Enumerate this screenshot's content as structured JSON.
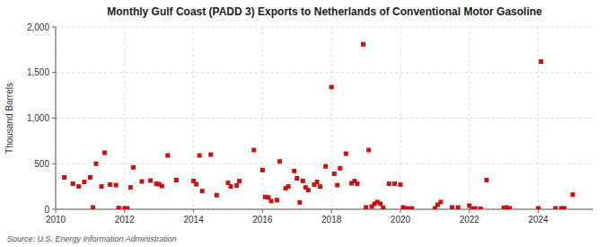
{
  "chart_data": {
    "type": "scatter",
    "title": "Monthly Gulf Coast (PADD 3) Exports to Netherlands of Conventional Motor Gasoline",
    "ylabel": "Thousand Barrels",
    "source": "Source: U.S. Energy Information Administration",
    "color": "#cc1111",
    "marker": "square",
    "grid": true,
    "xlim": [
      2010.0,
      2025.6
    ],
    "xticks": [
      2010,
      2012,
      2014,
      2016,
      2018,
      2020,
      2022,
      2024
    ],
    "ylim": [
      0,
      2000
    ],
    "yticks": [
      0,
      500,
      {
        "value": 1000,
        "label": "1,000"
      },
      {
        "value": 1500,
        "label": "1,500"
      },
      {
        "value": 2000,
        "label": "2,000"
      }
    ],
    "x": [
      2010.25,
      2010.5,
      2010.67,
      2010.83,
      2011.0,
      2011.08,
      2011.17,
      2011.33,
      2011.42,
      2011.58,
      2011.75,
      2011.83,
      2012.0,
      2012.08,
      2012.17,
      2012.25,
      2012.5,
      2012.75,
      2012.92,
      2013.0,
      2013.08,
      2013.25,
      2013.5,
      2014.0,
      2014.08,
      2014.17,
      2014.25,
      2014.5,
      2014.67,
      2015.0,
      2015.08,
      2015.25,
      2015.33,
      2015.75,
      2016.0,
      2016.08,
      2016.17,
      2016.25,
      2016.42,
      2016.5,
      2016.67,
      2016.75,
      2016.92,
      2017.0,
      2017.08,
      2017.17,
      2017.25,
      2017.33,
      2017.5,
      2017.58,
      2017.67,
      2017.83,
      2018.0,
      2018.08,
      2018.17,
      2018.25,
      2018.42,
      2018.58,
      2018.67,
      2018.75,
      2018.92,
      2019.0,
      2019.08,
      2019.17,
      2019.25,
      2019.33,
      2019.42,
      2019.5,
      2019.67,
      2019.83,
      2020.0,
      2020.08,
      2020.17,
      2020.25,
      2020.33,
      2021.0,
      2021.08,
      2021.17,
      2021.5,
      2021.67,
      2022.0,
      2022.08,
      2022.17,
      2022.33,
      2022.5,
      2023.0,
      2023.08,
      2023.17,
      2024.0,
      2024.08,
      2024.5,
      2024.67,
      2024.75,
      2025.0
    ],
    "values": [
      350,
      280,
      250,
      300,
      350,
      20,
      500,
      250,
      620,
      270,
      265,
      15,
      10,
      10,
      240,
      460,
      305,
      315,
      280,
      275,
      255,
      590,
      320,
      310,
      275,
      590,
      200,
      600,
      155,
      290,
      250,
      260,
      310,
      650,
      430,
      135,
      130,
      90,
      100,
      525,
      230,
      250,
      420,
      340,
      75,
      310,
      240,
      210,
      270,
      300,
      250,
      470,
      1340,
      390,
      265,
      450,
      610,
      285,
      310,
      280,
      1810,
      20,
      650,
      30,
      60,
      80,
      60,
      15,
      280,
      280,
      270,
      20,
      10,
      5,
      10,
      10,
      50,
      80,
      20,
      20,
      40,
      5,
      10,
      5,
      320,
      15,
      20,
      10,
      10,
      1620,
      10,
      10,
      10,
      160
    ]
  }
}
